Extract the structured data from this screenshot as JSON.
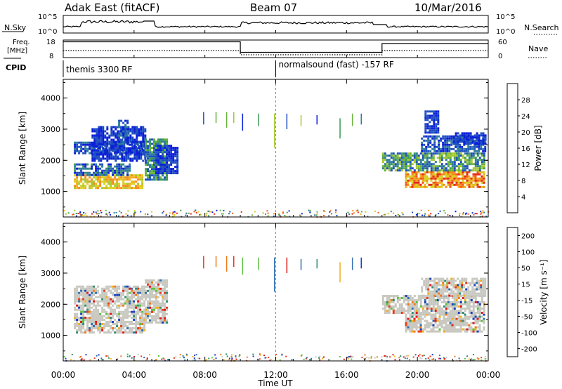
{
  "header": {
    "station": "Adak East (fitACF)",
    "beam": "Beam 07",
    "date": "10/Mar/2016"
  },
  "summary_panels": {
    "nsky_label": "N.Sky",
    "nsky_ticks": [
      "10^5",
      "10^0"
    ],
    "nsearch_label": "N.Search",
    "nsearch_ticks": [
      "10^5",
      "10^0"
    ],
    "freq_label_1": "Freq.",
    "freq_label_2": "[MHz]",
    "freq_ticks": [
      "18",
      "8"
    ],
    "nave_label": "Nave",
    "nave_ticks": [
      "60",
      "0"
    ],
    "cpid_label": "CPID",
    "cpid_segments": [
      {
        "start": 0,
        "end": 12,
        "label": "themis 3300 RF"
      },
      {
        "start": 12,
        "end": 24,
        "label": "normalsound (fast) -157 RF"
      }
    ],
    "freq_steps": [
      {
        "start": 0,
        "end": 10,
        "value": 17
      },
      {
        "start": 10,
        "end": 18,
        "value": 11
      },
      {
        "start": 18,
        "end": 24,
        "value": 16
      }
    ]
  },
  "chart_data": [
    {
      "type": "heatmap",
      "name": "power",
      "ylabel": "Slant Range [km]",
      "ylim": [
        180,
        4600
      ],
      "yticks": [
        1000,
        2000,
        3000,
        4000
      ],
      "xlim": [
        0,
        24
      ],
      "colorbar_label": "Power [dB]",
      "colorbar_ticks": [
        "4",
        "8",
        "12",
        "16",
        "20",
        "24",
        "28"
      ],
      "colorbar_colors": [
        "#0b1fd8",
        "#1f4fc0",
        "#2f7d9a",
        "#3b9a55",
        "#66b23a",
        "#a6c830",
        "#d6d21e",
        "#f0b020",
        "#f58a1c",
        "#f05a18",
        "#e8281a"
      ],
      "regions": [
        {
          "t0": 0.6,
          "t1": 4.5,
          "r0": 1080,
          "r1": 1550,
          "c": [
            5,
            8
          ]
        },
        {
          "t0": 0.6,
          "t1": 3.8,
          "r0": 1550,
          "r1": 1900,
          "c": [
            0,
            3
          ]
        },
        {
          "t0": 0.6,
          "t1": 4.6,
          "r0": 2250,
          "r1": 2600,
          "c": [
            0,
            2
          ]
        },
        {
          "t0": 1.6,
          "t1": 4.6,
          "r0": 2000,
          "r1": 3100,
          "c": [
            0,
            1
          ]
        },
        {
          "t0": 3.1,
          "t1": 3.6,
          "r0": 2500,
          "r1": 3300,
          "c": [
            0,
            2
          ]
        },
        {
          "t0": 4.6,
          "t1": 5.9,
          "r0": 1400,
          "r1": 2700,
          "c": [
            1,
            4
          ]
        },
        {
          "t0": 5.2,
          "t1": 6.4,
          "r0": 1600,
          "r1": 2500,
          "c": [
            0,
            1
          ]
        },
        {
          "t0": 19.3,
          "t1": 23.8,
          "r0": 1150,
          "r1": 1650,
          "c": [
            6,
            10
          ]
        },
        {
          "t0": 18.0,
          "t1": 23.8,
          "r0": 1650,
          "r1": 2250,
          "c": [
            1,
            5
          ]
        },
        {
          "t0": 20.2,
          "t1": 23.8,
          "r0": 2300,
          "r1": 2800,
          "c": [
            0,
            2
          ]
        },
        {
          "t0": 22.0,
          "t1": 23.8,
          "r0": 2500,
          "r1": 2900,
          "c": [
            0,
            1
          ]
        },
        {
          "t0": 20.4,
          "t1": 21.2,
          "r0": 2900,
          "r1": 3600,
          "c": [
            0,
            1
          ]
        }
      ],
      "streaks": [
        {
          "t": 7.9,
          "r0": 3150,
          "r1": 3550
        },
        {
          "t": 8.6,
          "r0": 3200,
          "r1": 3550
        },
        {
          "t": 9.2,
          "r0": 3050,
          "r1": 3550
        },
        {
          "t": 9.6,
          "r0": 3200,
          "r1": 3550
        },
        {
          "t": 10.1,
          "r0": 2950,
          "r1": 3500
        },
        {
          "t": 11.0,
          "r0": 3100,
          "r1": 3500
        },
        {
          "t": 11.9,
          "r0": 2400,
          "r1": 3500
        },
        {
          "t": 12.6,
          "r0": 3000,
          "r1": 3500
        },
        {
          "t": 13.4,
          "r0": 3100,
          "r1": 3450
        },
        {
          "t": 14.3,
          "r0": 3150,
          "r1": 3450
        },
        {
          "t": 15.6,
          "r0": 2700,
          "r1": 3350
        },
        {
          "t": 16.3,
          "r0": 3100,
          "r1": 3500
        },
        {
          "t": 16.8,
          "r0": 3150,
          "r1": 3500
        }
      ]
    },
    {
      "type": "heatmap",
      "name": "velocity",
      "ylabel": "Slant Range [km]",
      "ylim": [
        180,
        4600
      ],
      "yticks": [
        1000,
        2000,
        3000,
        4000
      ],
      "xlabel": "Time UT",
      "xlim": [
        0,
        24
      ],
      "xticks": [
        "00:00",
        "04:00",
        "08:00",
        "12:00",
        "16:00",
        "20:00",
        "00:00"
      ],
      "colorbar_label": "Velocity [m s⁻¹]",
      "colorbar_ticks": [
        "200",
        "100",
        "50",
        "15",
        "-15",
        "-50",
        "-100",
        "-200"
      ],
      "colorbar_colors": [
        "#1a3fbf",
        "#2f6fb0",
        "#2f8f70",
        "#5cc040",
        "#c8c8c0",
        "#f0b020",
        "#f07a18",
        "#e83a18",
        "#e0181a"
      ],
      "regions": [
        {
          "t0": 0.6,
          "t1": 4.6,
          "r0": 1080,
          "r1": 1600
        },
        {
          "t0": 0.6,
          "t1": 4.6,
          "r0": 1600,
          "r1": 2600
        },
        {
          "t0": 4.6,
          "t1": 5.9,
          "r0": 1400,
          "r1": 2800
        },
        {
          "t0": 19.3,
          "t1": 23.8,
          "r0": 1150,
          "r1": 1700
        },
        {
          "t0": 18.0,
          "t1": 23.8,
          "r0": 1700,
          "r1": 2300
        },
        {
          "t0": 20.2,
          "t1": 23.8,
          "r0": 2300,
          "r1": 2850
        }
      ]
    }
  ]
}
